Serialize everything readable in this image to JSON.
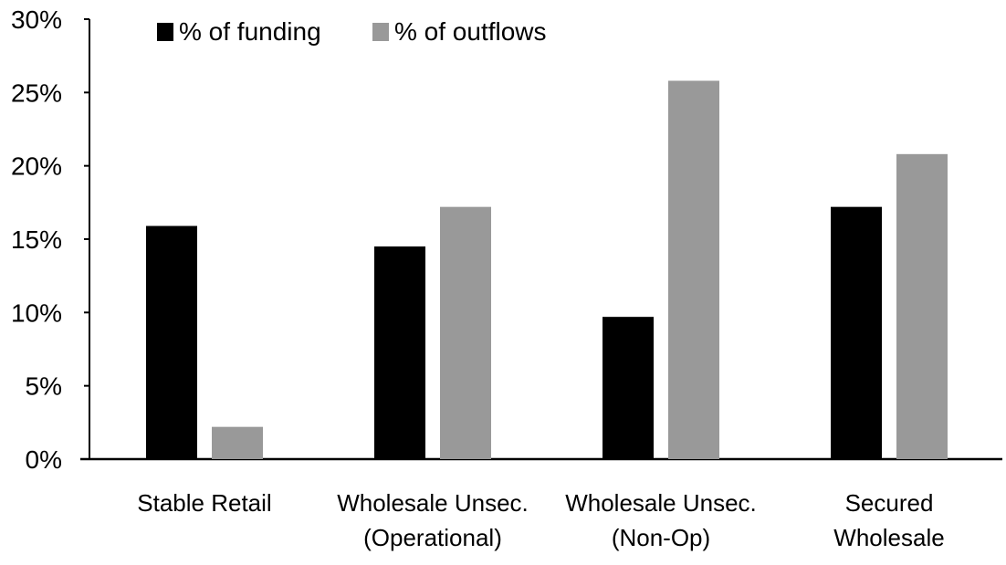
{
  "chart_data": {
    "type": "bar",
    "categories": [
      [
        "Stable Retail"
      ],
      [
        "Wholesale Unsec.",
        "(Operational)"
      ],
      [
        "Wholesale Unsec.",
        "(Non-Op)"
      ],
      [
        "Secured",
        "Wholesale"
      ]
    ],
    "series": [
      {
        "name": "% of funding",
        "color": "#000000",
        "values": [
          15.9,
          14.5,
          9.7,
          17.2
        ]
      },
      {
        "name": "% of outflows",
        "color": "#999999",
        "values": [
          2.2,
          17.2,
          25.8,
          20.8
        ]
      }
    ],
    "ylim": [
      0,
      30
    ],
    "yticks": [
      "0%",
      "5%",
      "10%",
      "15%",
      "20%",
      "25%",
      "30%"
    ],
    "ytick_values": [
      0,
      5,
      10,
      15,
      20,
      25,
      30
    ],
    "grid": false,
    "legend": "top-left",
    "title": "",
    "xlabel": "",
    "ylabel": ""
  }
}
